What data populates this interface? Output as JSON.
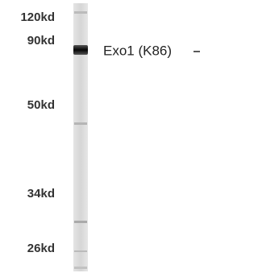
{
  "markers": [
    "120kd",
    "90kd",
    "50kd",
    "34kd",
    "26kd"
  ],
  "band_label": "Exo1 (K86)"
}
